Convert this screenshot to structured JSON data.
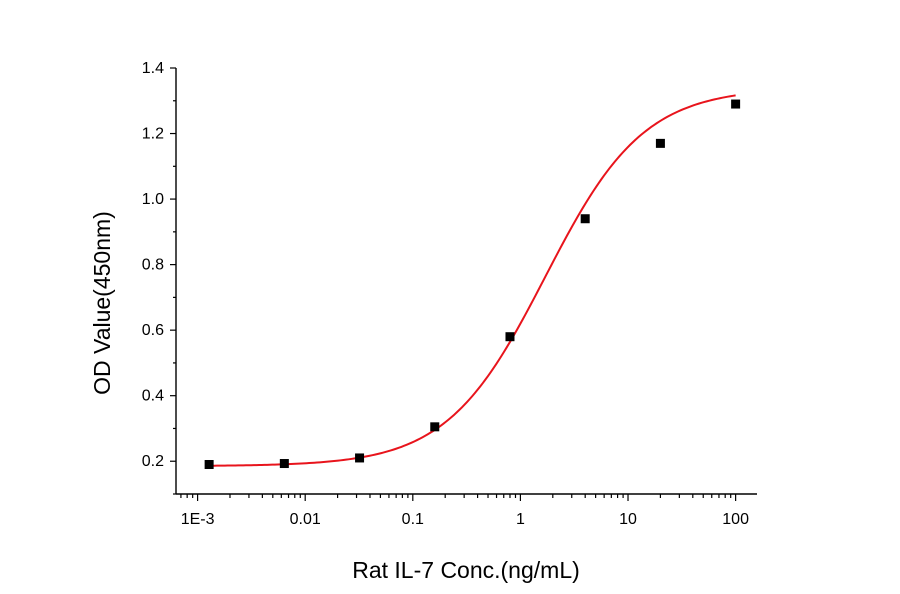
{
  "chart_data": {
    "type": "scatter",
    "title": "",
    "xlabel": "Rat IL-7 Conc.(ng/mL)",
    "ylabel": "OD Value(450nm)",
    "x_scale": "log",
    "xlim": [
      0.00063,
      158
    ],
    "ylim": [
      0.1,
      1.4
    ],
    "grid": false,
    "legend": "none",
    "x_ticks": [
      {
        "value": 0.001,
        "label": "1E-3"
      },
      {
        "value": 0.01,
        "label": "0.01"
      },
      {
        "value": 0.1,
        "label": "0.1"
      },
      {
        "value": 1,
        "label": "1"
      },
      {
        "value": 10,
        "label": "10"
      },
      {
        "value": 100,
        "label": "100"
      }
    ],
    "y_ticks": [
      {
        "value": 0.2,
        "label": "0.2"
      },
      {
        "value": 0.4,
        "label": "0.4"
      },
      {
        "value": 0.6,
        "label": "0.6"
      },
      {
        "value": 0.8,
        "label": "0.8"
      },
      {
        "value": 1.0,
        "label": "1.0"
      },
      {
        "value": 1.2,
        "label": "1.2"
      },
      {
        "value": 1.4,
        "label": "1.4"
      }
    ],
    "series": [
      {
        "points": [
          {
            "x": 0.00128,
            "y": 0.19
          },
          {
            "x": 0.0064,
            "y": 0.193
          },
          {
            "x": 0.032,
            "y": 0.21
          },
          {
            "x": 0.16,
            "y": 0.305
          },
          {
            "x": 0.8,
            "y": 0.58
          },
          {
            "x": 4,
            "y": 0.94
          },
          {
            "x": 20,
            "y": 1.17
          },
          {
            "x": 100,
            "y": 1.29
          }
        ],
        "marker_color": "#000000"
      }
    ],
    "fit_curve": {
      "model": "4PL",
      "bottom": 0.185,
      "top": 1.34,
      "ec50": 1.7,
      "hill": 0.95,
      "color": "#e8141c"
    }
  }
}
